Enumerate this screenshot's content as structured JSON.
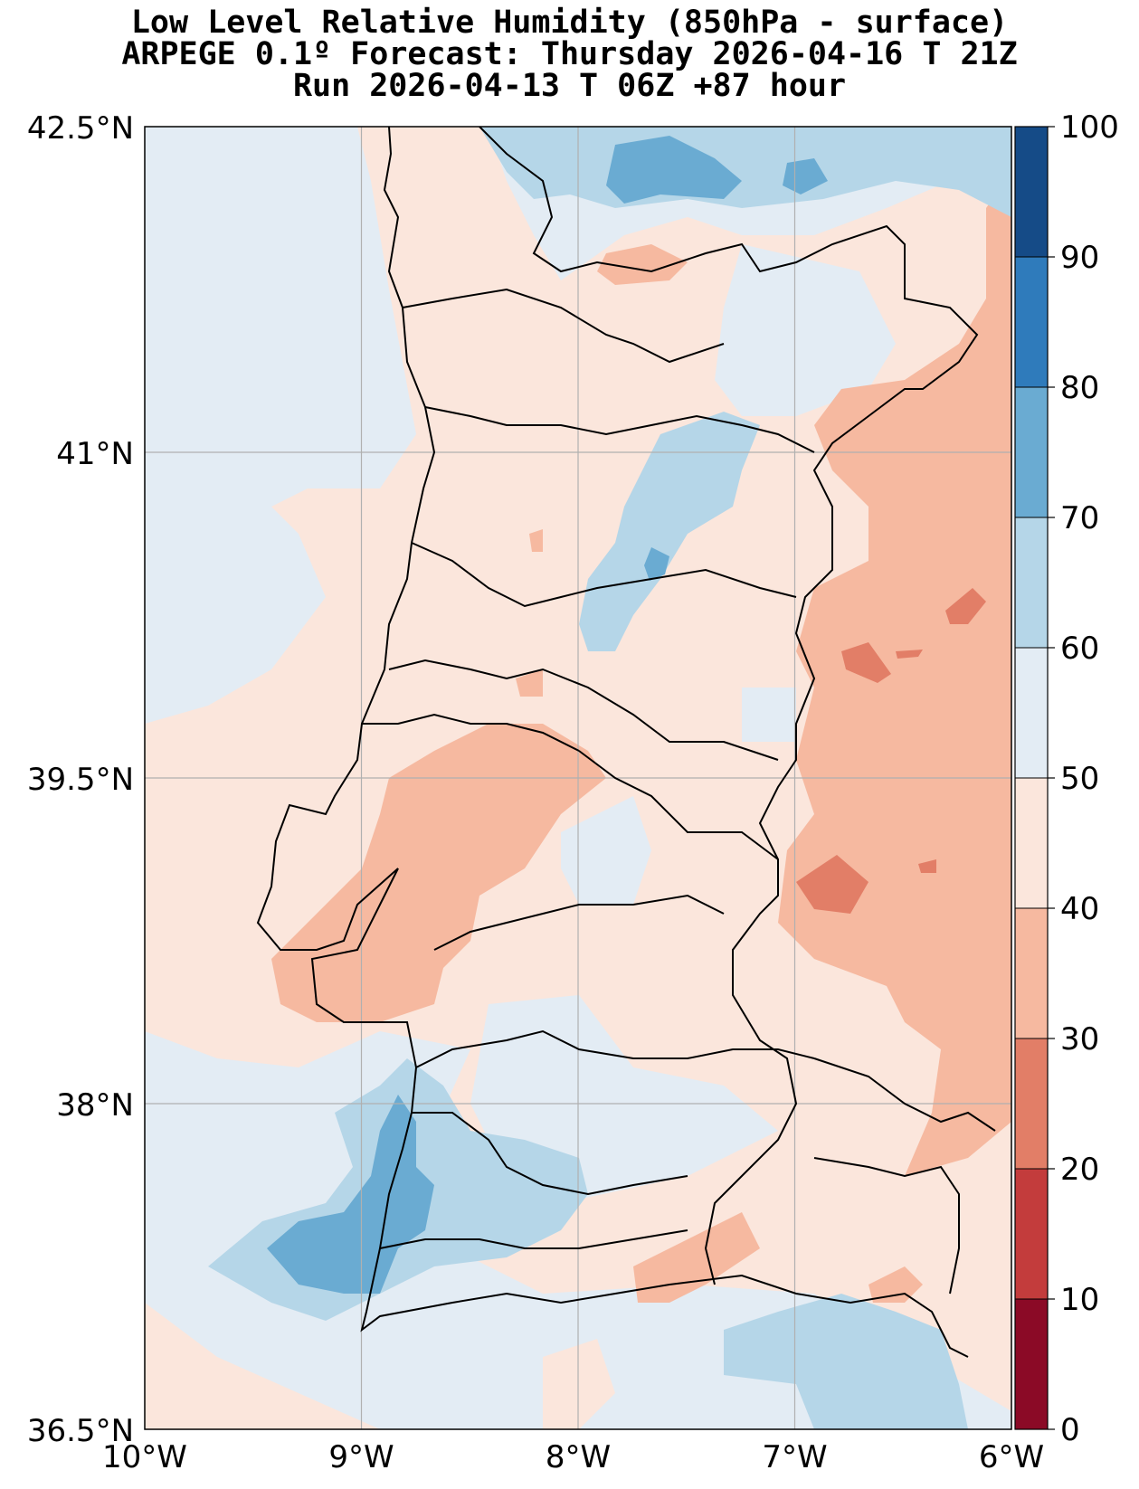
{
  "title": {
    "line1": "Low Level Relative Humidity (850hPa - surface)",
    "line2": "ARPEGE 0.1º Forecast: Thursday 2026-04-16 T 21Z",
    "line3": "Run 2026-04-13 T 06Z +87 hour"
  },
  "axes": {
    "lat_labels": [
      "42.5°N",
      "41°N",
      "39.5°N",
      "38°N",
      "36.5°N"
    ],
    "lat_values": [
      42.5,
      41,
      39.5,
      38,
      36.5
    ],
    "lon_labels": [
      "10°W",
      "9°W",
      "8°W",
      "7°W",
      "6°W"
    ],
    "lon_values": [
      -10,
      -9,
      -8,
      -7,
      -6
    ],
    "lat_range": [
      36.5,
      42.5
    ],
    "lon_range": [
      -10,
      -6
    ]
  },
  "colorbar": {
    "ticks": [
      "0",
      "10",
      "20",
      "30",
      "40",
      "50",
      "60",
      "70",
      "80",
      "90",
      "100"
    ],
    "levels": [
      0,
      10,
      20,
      30,
      40,
      50,
      60,
      70,
      80,
      90,
      100
    ],
    "colors": [
      "#8b0a26",
      "#c33c3c",
      "#e27e67",
      "#f6b9a0",
      "#fbe6dc",
      "#e3ecf4",
      "#b5d6e8",
      "#6aabd2",
      "#2f7bbb",
      "#154b87"
    ]
  },
  "colors": {
    "sea_background": "#e3ecf4",
    "land_dry": "#fbe6dc",
    "grid": "#b0b0b0",
    "coastline": "#000000"
  }
}
